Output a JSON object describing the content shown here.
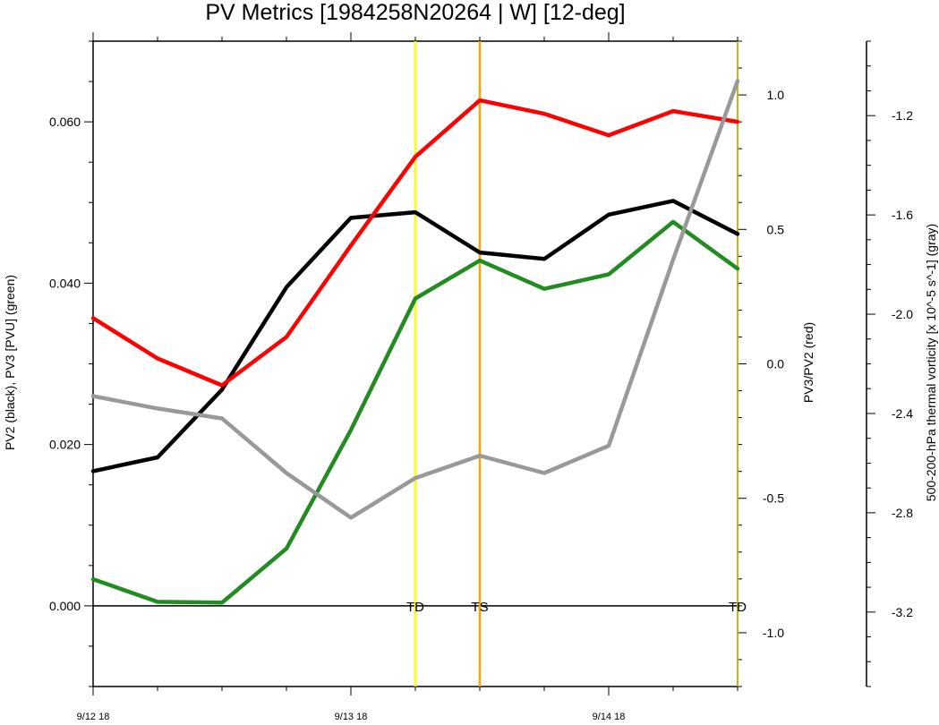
{
  "chart_data": {
    "type": "line",
    "title": "PV Metrics [1984258N20264 | W] [12-deg]",
    "x": [
      0,
      6,
      12,
      18,
      24,
      30,
      36,
      42,
      48,
      54,
      60
    ],
    "x_tick_labels": [
      {
        "x": 0,
        "label": "9/12 18"
      },
      {
        "x": 24,
        "label": "9/13 18"
      },
      {
        "x": 48,
        "label": "9/14 18"
      }
    ],
    "xlim": [
      0,
      60
    ],
    "left_axis": {
      "label": "PV2 (black), PV3 [PVU] (green)",
      "ylim": [
        -0.01,
        0.07
      ],
      "ticks": [
        0.0,
        0.02,
        0.04,
        0.06
      ],
      "tick_labels": [
        "0.000",
        "0.020",
        "0.040",
        "0.060"
      ]
    },
    "right_axis": {
      "label": "PV3/PV2 (red)",
      "ylim": [
        -1.2,
        1.2
      ],
      "ticks": [
        -1.0,
        -0.5,
        0.0,
        0.5,
        1.0
      ],
      "tick_labels": [
        "-1.0",
        "-0.5",
        "0.0",
        "0.5",
        "1.0"
      ]
    },
    "far_right_axis": {
      "label": "500-200-hPa thermal vorticity [x 10^-5 s^-1] (gray)",
      "ylim": [
        -3.5,
        -0.9
      ],
      "ticks": [
        -3.2,
        -2.8,
        -2.4,
        -2.0,
        -1.6,
        -1.2
      ],
      "tick_labels": [
        "-3.2",
        "-2.8",
        "-2.4",
        "-2.0",
        "-1.6",
        "-1.2"
      ]
    },
    "series": [
      {
        "axis": "left",
        "color": "#000000",
        "values": [
          0.0167,
          0.0184,
          0.0268,
          0.0395,
          0.0481,
          0.0488,
          0.0438,
          0.043,
          0.0485,
          0.0502,
          0.0461
        ]
      },
      {
        "axis": "left",
        "color": "#228b22",
        "values": [
          0.0033,
          0.0005,
          0.0004,
          0.0071,
          0.0218,
          0.0381,
          0.0428,
          0.0393,
          0.0411,
          0.0476,
          0.0418
        ]
      },
      {
        "axis": "right",
        "color": "#ff0000",
        "values": [
          0.17,
          0.02,
          -0.08,
          0.1,
          0.44,
          0.77,
          0.98,
          0.93,
          0.85,
          0.94,
          0.9
        ]
      },
      {
        "axis": "far_right",
        "color": "#999999",
        "values": [
          -2.33,
          -2.38,
          -2.42,
          -2.64,
          -2.82,
          -2.66,
          -2.57,
          -2.64,
          -2.53,
          -1.78,
          -1.06
        ]
      }
    ],
    "vertical_lines": [
      {
        "x": 30,
        "color": "#ffff00"
      },
      {
        "x": 36,
        "color": "#ffa500"
      },
      {
        "x": 60,
        "color": "#cccc00"
      }
    ],
    "annotations": [
      {
        "x": 30,
        "text": "TD"
      },
      {
        "x": 36,
        "text": "TS"
      },
      {
        "x": 60,
        "text": "TD"
      }
    ],
    "zero_line": true,
    "grid": false,
    "legend": "none"
  }
}
